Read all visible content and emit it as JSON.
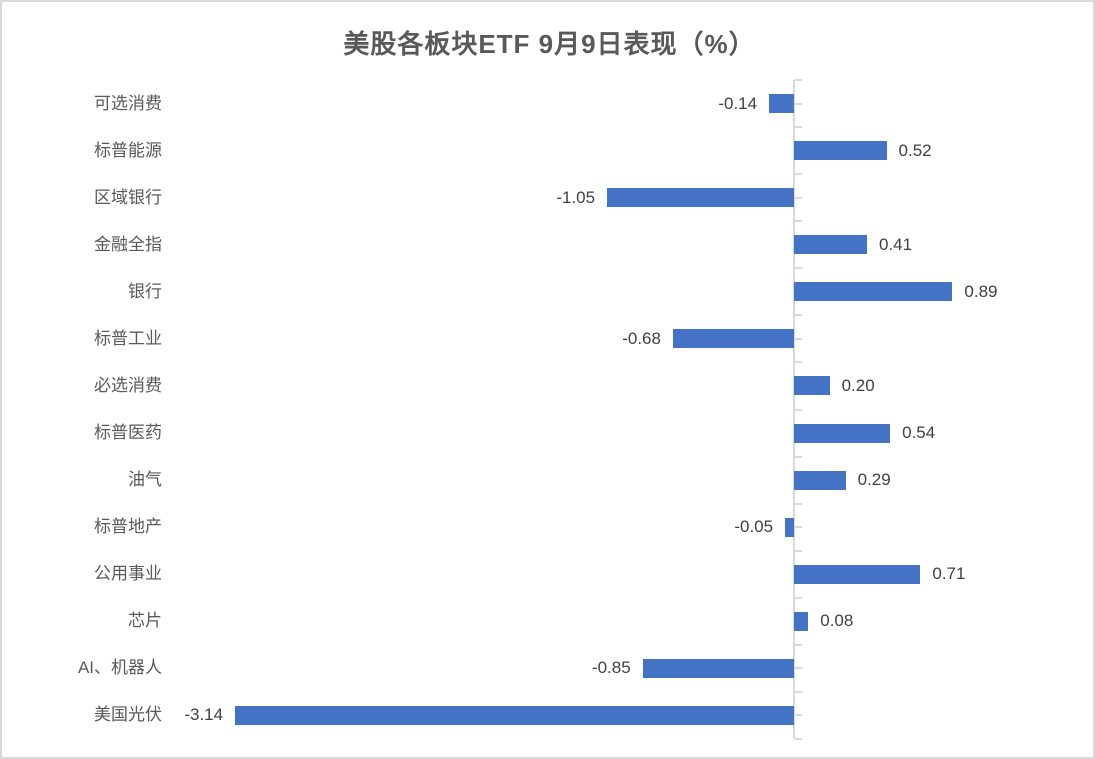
{
  "title": "美股各板块ETF 9月9日表现（%）",
  "chart_data": {
    "type": "bar",
    "orientation": "horizontal",
    "title": "美股各板块ETF 9月9日表现（%）",
    "xlabel": "",
    "ylabel": "",
    "categories": [
      "可选消费",
      "标普能源",
      "区域银行",
      "金融全指",
      "银行",
      "标普工业",
      "必选消费",
      "标普医药",
      "油气",
      "标普地产",
      "公用事业",
      "芯片",
      "AI、机器人",
      "美国光伏"
    ],
    "values": [
      -0.14,
      0.52,
      -1.05,
      0.41,
      0.89,
      -0.68,
      0.2,
      0.54,
      0.29,
      -0.05,
      0.71,
      0.08,
      -0.85,
      -3.14
    ],
    "value_labels": [
      "-0.14",
      "0.52",
      "-1.05",
      "0.41",
      "0.89",
      "-0.68",
      "0.20",
      "0.54",
      "0.29",
      "-0.05",
      "0.71",
      "0.08",
      "-0.85",
      "-3.14"
    ],
    "xlim": [
      -3.55,
      1.4
    ],
    "grid": false,
    "legend": false,
    "data_labels": true,
    "colors": {
      "bar": "#4472c4",
      "axis": "#d9d9d9",
      "frame": "#d9d9d9",
      "title_text": "#595959",
      "category_text": "#595959",
      "value_text": "#404040",
      "background": "#ffffff"
    }
  }
}
